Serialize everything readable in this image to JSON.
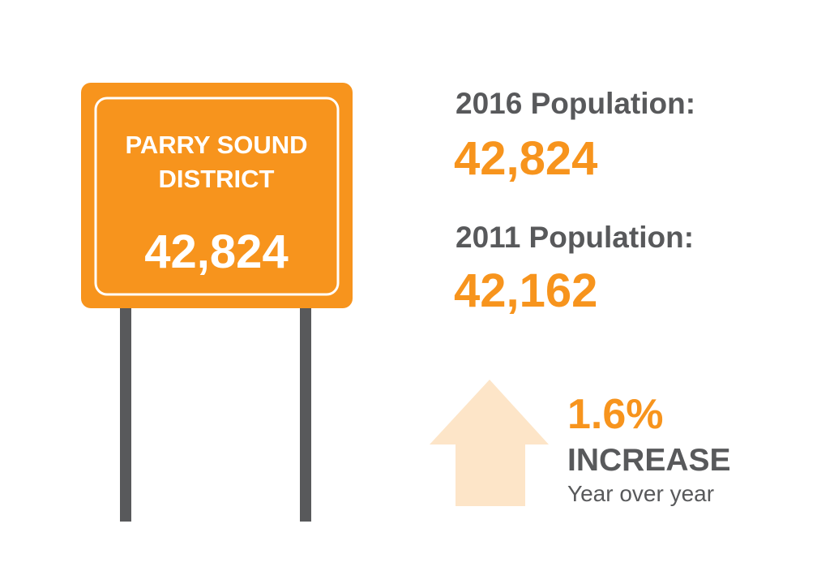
{
  "sign": {
    "title_lines": [
      "PARRY SOUND",
      "DISTRICT"
    ],
    "value": "42,824"
  },
  "stats": [
    {
      "label": "2016 Population:",
      "value": "42,824"
    },
    {
      "label": "2011 Population:",
      "value": "42,162"
    }
  ],
  "change": {
    "value": "1.6%",
    "label": "INCREASE",
    "note": "Year over year"
  }
}
